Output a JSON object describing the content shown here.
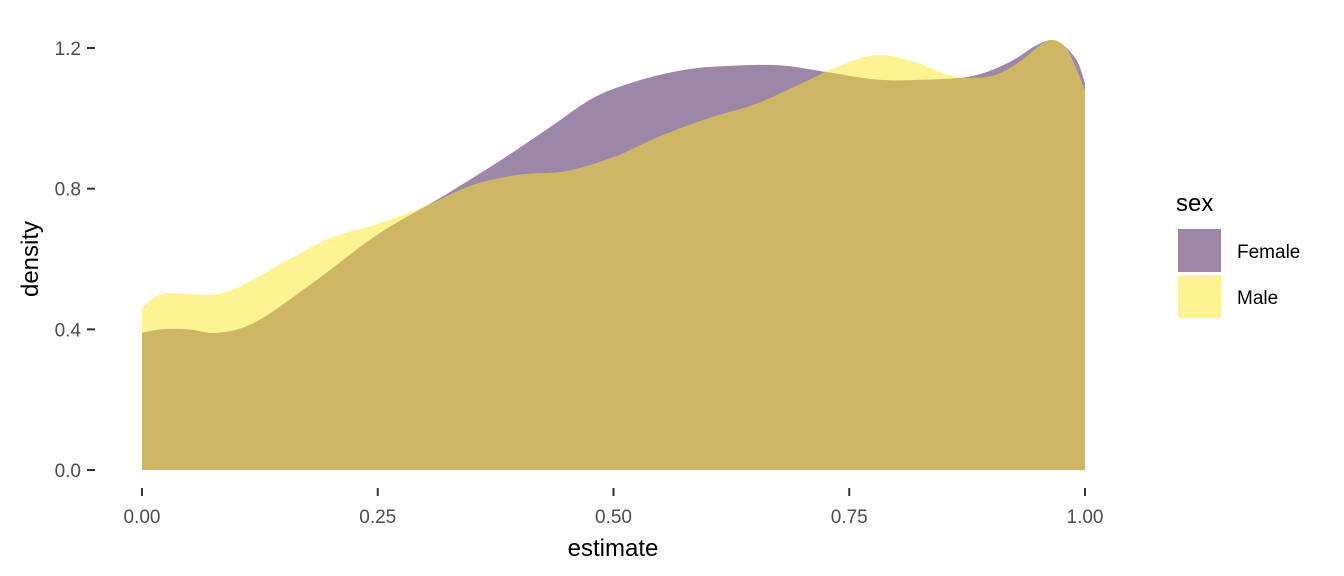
{
  "chart_data": {
    "type": "area",
    "subtype": "density",
    "title": "",
    "xlabel": "estimate",
    "ylabel": "density",
    "xlim": [
      0,
      1
    ],
    "ylim": [
      0,
      1.2
    ],
    "x_ticks": [
      0,
      0.25,
      0.5,
      0.75,
      1.0
    ],
    "x_tick_labels": [
      "0.00",
      "0.25",
      "0.50",
      "0.75",
      "1.00"
    ],
    "y_ticks": [
      0,
      0.4,
      0.8,
      1.2
    ],
    "y_tick_labels": [
      "0.0",
      "0.4",
      "0.8",
      "1.2"
    ],
    "grid": false,
    "legend": {
      "title": "sex",
      "position": "right"
    },
    "series": [
      {
        "name": "Female",
        "color": "#3B0F4F",
        "opacity": 0.5,
        "x": [
          0,
          0.02,
          0.05,
          0.08,
          0.12,
          0.18,
          0.25,
          0.32,
          0.38,
          0.43,
          0.48,
          0.53,
          0.58,
          0.63,
          0.68,
          0.73,
          0.78,
          0.83,
          0.88,
          0.92,
          0.95,
          0.97,
          0.99,
          1.0
        ],
        "y": [
          0.39,
          0.4,
          0.4,
          0.39,
          0.42,
          0.53,
          0.67,
          0.78,
          0.88,
          0.97,
          1.06,
          1.11,
          1.14,
          1.15,
          1.15,
          1.13,
          1.11,
          1.11,
          1.12,
          1.16,
          1.21,
          1.22,
          1.17,
          1.1
        ]
      },
      {
        "name": "Male",
        "color": "#FDE725",
        "opacity": 0.5,
        "x": [
          0,
          0.02,
          0.05,
          0.08,
          0.11,
          0.15,
          0.2,
          0.25,
          0.3,
          0.35,
          0.4,
          0.45,
          0.5,
          0.55,
          0.6,
          0.65,
          0.7,
          0.74,
          0.78,
          0.82,
          0.86,
          0.9,
          0.93,
          0.96,
          0.98,
          1.0
        ],
        "y": [
          0.46,
          0.5,
          0.5,
          0.5,
          0.53,
          0.59,
          0.66,
          0.7,
          0.75,
          0.81,
          0.84,
          0.85,
          0.89,
          0.95,
          1.0,
          1.04,
          1.1,
          1.15,
          1.18,
          1.16,
          1.12,
          1.12,
          1.16,
          1.22,
          1.2,
          1.08
        ]
      }
    ]
  }
}
